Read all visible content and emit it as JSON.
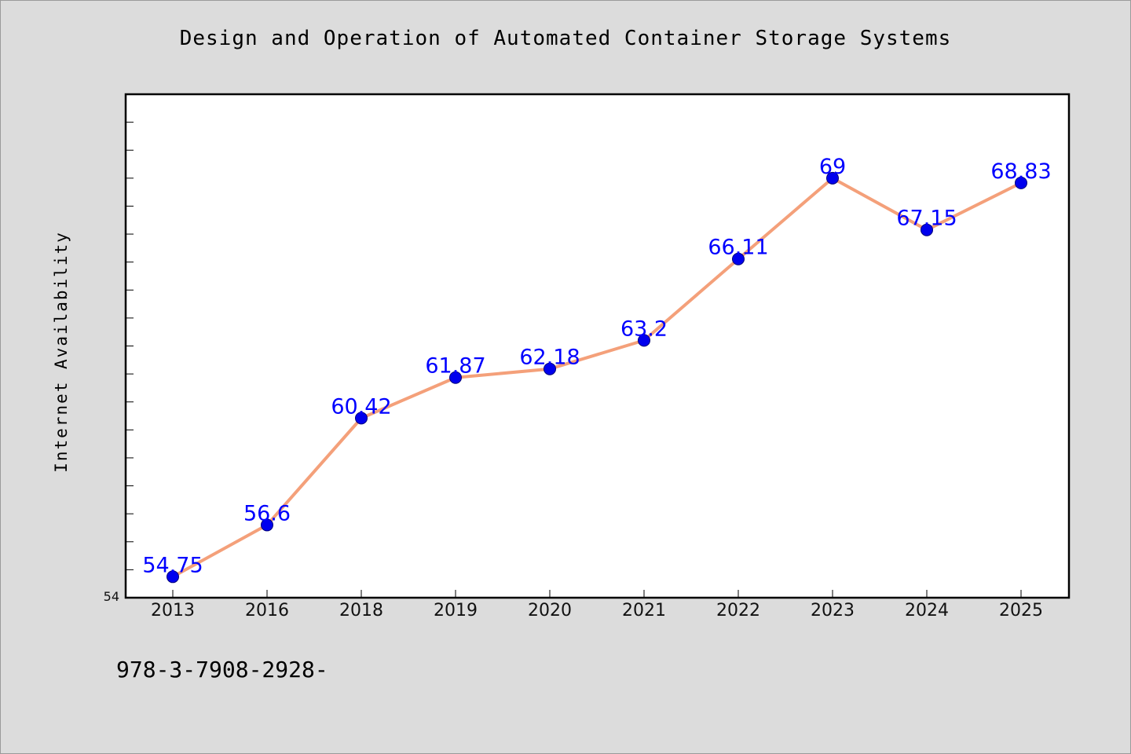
{
  "title": "Design and Operation of Automated Container Storage Systems",
  "footer_text": "978-3-7908-2928-",
  "chart_data": {
    "type": "line",
    "title": "Design and Operation of Automated Container Storage Systems",
    "xlabel": "",
    "ylabel": "Internet Availability",
    "categories": [
      "2013",
      "2016",
      "2018",
      "2019",
      "2020",
      "2021",
      "2022",
      "2023",
      "2024",
      "2025"
    ],
    "series": [
      {
        "values": [
          54.75,
          56.6,
          60.42,
          61.87,
          62.18,
          63.2,
          66.11,
          69,
          67.15,
          68.83
        ],
        "data_labels": [
          "54.75",
          "56.6",
          "60.42",
          "61.87",
          "62.18",
          "63.2",
          "66.11",
          "69",
          "67.15",
          "68.83"
        ]
      }
    ],
    "ylim": [
      54,
      72
    ],
    "y_tick_labels": [
      "54"
    ],
    "grid": false,
    "colors": {
      "line": "#f4a07a",
      "marker": "#0000ee",
      "label": "#0000ff",
      "plot_bg": "#ffffff",
      "page_bg": "#dcdcdc"
    }
  }
}
